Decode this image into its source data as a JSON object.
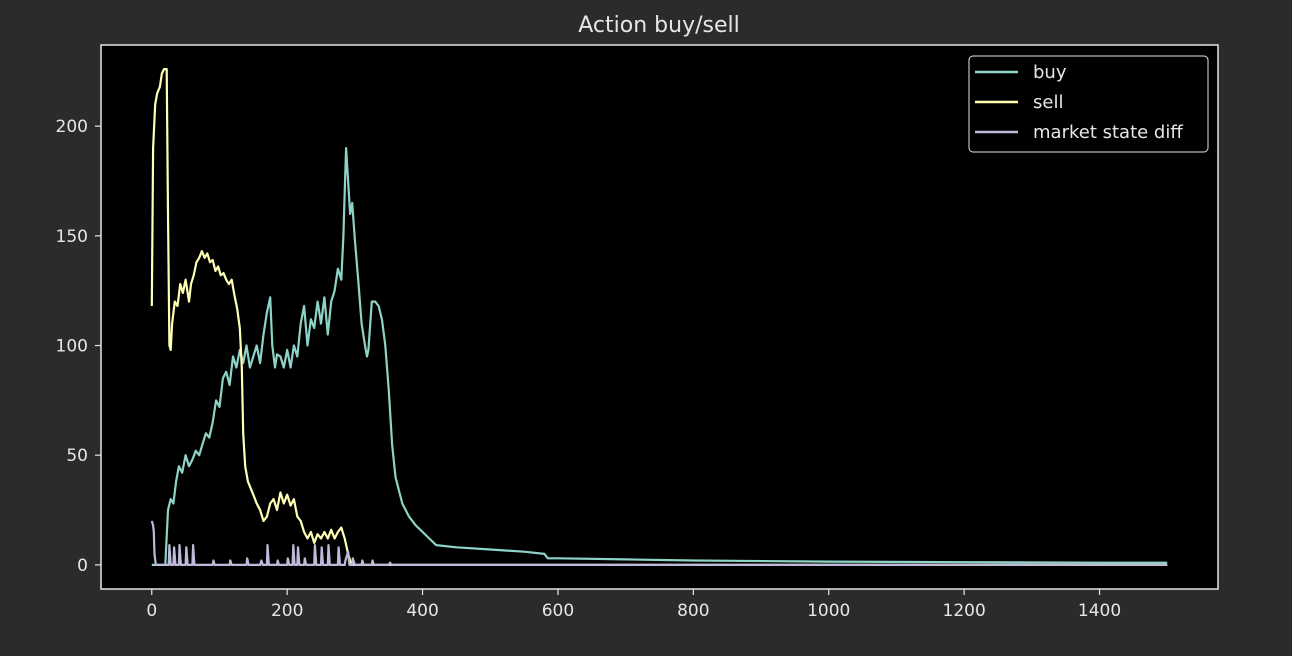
{
  "chart_data": {
    "type": "line",
    "title": "Action buy/sell",
    "xlabel": "",
    "ylabel": "",
    "xlim": [
      -75,
      1575
    ],
    "ylim": [
      -11,
      237
    ],
    "xticks": [
      0,
      200,
      400,
      600,
      800,
      1000,
      1200,
      1400
    ],
    "yticks": [
      0,
      50,
      100,
      150,
      200
    ],
    "grid": false,
    "legend_position": "top-right",
    "colors": {
      "figure_background": "#2b2b2b",
      "axes_background": "#000000",
      "axes_edge": "#e6e6e6",
      "text": "#e6e6e6"
    },
    "series": [
      {
        "name": "buy",
        "color": "#8dd3c7",
        "points": [
          [
            0,
            0
          ],
          [
            20,
            0
          ],
          [
            24,
            25
          ],
          [
            28,
            30
          ],
          [
            32,
            28
          ],
          [
            36,
            38
          ],
          [
            40,
            45
          ],
          [
            45,
            42
          ],
          [
            50,
            50
          ],
          [
            55,
            45
          ],
          [
            60,
            48
          ],
          [
            65,
            52
          ],
          [
            70,
            50
          ],
          [
            75,
            55
          ],
          [
            80,
            60
          ],
          [
            85,
            58
          ],
          [
            90,
            65
          ],
          [
            95,
            75
          ],
          [
            100,
            72
          ],
          [
            105,
            85
          ],
          [
            110,
            88
          ],
          [
            115,
            82
          ],
          [
            120,
            95
          ],
          [
            125,
            90
          ],
          [
            130,
            98
          ],
          [
            135,
            92
          ],
          [
            140,
            100
          ],
          [
            145,
            90
          ],
          [
            150,
            95
          ],
          [
            155,
            100
          ],
          [
            160,
            92
          ],
          [
            165,
            105
          ],
          [
            170,
            115
          ],
          [
            175,
            122
          ],
          [
            178,
            100
          ],
          [
            182,
            90
          ],
          [
            185,
            96
          ],
          [
            190,
            95
          ],
          [
            195,
            90
          ],
          [
            200,
            98
          ],
          [
            205,
            90
          ],
          [
            210,
            100
          ],
          [
            215,
            95
          ],
          [
            220,
            110
          ],
          [
            225,
            118
          ],
          [
            230,
            100
          ],
          [
            235,
            112
          ],
          [
            240,
            108
          ],
          [
            245,
            120
          ],
          [
            250,
            110
          ],
          [
            255,
            122
          ],
          [
            260,
            105
          ],
          [
            265,
            120
          ],
          [
            270,
            125
          ],
          [
            275,
            135
          ],
          [
            280,
            130
          ],
          [
            283,
            150
          ],
          [
            285,
            170
          ],
          [
            287,
            190
          ],
          [
            290,
            175
          ],
          [
            293,
            160
          ],
          [
            296,
            165
          ],
          [
            300,
            148
          ],
          [
            305,
            130
          ],
          [
            310,
            110
          ],
          [
            315,
            100
          ],
          [
            318,
            95
          ],
          [
            320,
            98
          ],
          [
            325,
            120
          ],
          [
            330,
            120
          ],
          [
            335,
            118
          ],
          [
            340,
            112
          ],
          [
            345,
            100
          ],
          [
            350,
            80
          ],
          [
            355,
            55
          ],
          [
            360,
            40
          ],
          [
            370,
            28
          ],
          [
            380,
            22
          ],
          [
            390,
            18
          ],
          [
            400,
            15
          ],
          [
            410,
            12
          ],
          [
            420,
            9
          ],
          [
            450,
            8
          ],
          [
            500,
            7
          ],
          [
            550,
            6
          ],
          [
            580,
            5
          ],
          [
            585,
            3
          ],
          [
            600,
            3
          ],
          [
            700,
            2.5
          ],
          [
            800,
            2
          ],
          [
            1000,
            1.5
          ],
          [
            1200,
            1.2
          ],
          [
            1400,
            1
          ],
          [
            1500,
            1
          ]
        ]
      },
      {
        "name": "sell",
        "color": "#ffffb3",
        "points": [
          [
            0,
            118
          ],
          [
            2,
            190
          ],
          [
            5,
            210
          ],
          [
            8,
            215
          ],
          [
            12,
            218
          ],
          [
            15,
            224
          ],
          [
            18,
            226
          ],
          [
            22,
            226
          ],
          [
            24,
            160
          ],
          [
            26,
            100
          ],
          [
            28,
            98
          ],
          [
            30,
            110
          ],
          [
            34,
            120
          ],
          [
            38,
            118
          ],
          [
            42,
            128
          ],
          [
            46,
            124
          ],
          [
            50,
            130
          ],
          [
            55,
            120
          ],
          [
            58,
            128
          ],
          [
            62,
            132
          ],
          [
            66,
            138
          ],
          [
            70,
            140
          ],
          [
            74,
            143
          ],
          [
            78,
            140
          ],
          [
            82,
            142
          ],
          [
            86,
            138
          ],
          [
            90,
            139
          ],
          [
            94,
            134
          ],
          [
            98,
            136
          ],
          [
            102,
            132
          ],
          [
            106,
            133
          ],
          [
            110,
            130
          ],
          [
            114,
            128
          ],
          [
            118,
            130
          ],
          [
            122,
            123
          ],
          [
            126,
            117
          ],
          [
            130,
            108
          ],
          [
            133,
            90
          ],
          [
            135,
            60
          ],
          [
            138,
            45
          ],
          [
            142,
            38
          ],
          [
            146,
            35
          ],
          [
            150,
            32
          ],
          [
            155,
            28
          ],
          [
            160,
            25
          ],
          [
            165,
            20
          ],
          [
            170,
            22
          ],
          [
            175,
            28
          ],
          [
            180,
            30
          ],
          [
            185,
            25
          ],
          [
            190,
            33
          ],
          [
            195,
            28
          ],
          [
            200,
            32
          ],
          [
            205,
            27
          ],
          [
            210,
            30
          ],
          [
            215,
            22
          ],
          [
            220,
            20
          ],
          [
            225,
            15
          ],
          [
            230,
            12
          ],
          [
            235,
            15
          ],
          [
            240,
            10
          ],
          [
            245,
            14
          ],
          [
            250,
            12
          ],
          [
            255,
            15
          ],
          [
            260,
            12
          ],
          [
            265,
            16
          ],
          [
            270,
            12
          ],
          [
            275,
            15
          ],
          [
            280,
            17
          ],
          [
            285,
            12
          ],
          [
            290,
            5
          ],
          [
            295,
            0
          ],
          [
            300,
            0
          ],
          [
            400,
            0
          ],
          [
            600,
            0
          ],
          [
            1000,
            0
          ],
          [
            1500,
            0
          ]
        ]
      },
      {
        "name": "market state diff",
        "color": "#bebada",
        "points": [
          [
            0,
            20
          ],
          [
            2,
            18
          ],
          [
            3,
            15
          ],
          [
            4,
            5
          ],
          [
            6,
            0
          ],
          [
            25,
            0
          ],
          [
            26,
            9
          ],
          [
            28,
            0
          ],
          [
            32,
            0
          ],
          [
            33,
            8
          ],
          [
            35,
            0
          ],
          [
            40,
            0
          ],
          [
            41,
            9
          ],
          [
            43,
            0
          ],
          [
            50,
            0
          ],
          [
            51,
            8
          ],
          [
            53,
            0
          ],
          [
            60,
            0
          ],
          [
            61,
            9
          ],
          [
            63,
            0
          ],
          [
            90,
            0
          ],
          [
            91,
            2
          ],
          [
            93,
            0
          ],
          [
            115,
            0
          ],
          [
            116,
            2
          ],
          [
            118,
            0
          ],
          [
            140,
            0
          ],
          [
            141,
            3
          ],
          [
            143,
            0
          ],
          [
            160,
            0
          ],
          [
            162,
            2
          ],
          [
            164,
            0
          ],
          [
            170,
            0
          ],
          [
            171,
            9
          ],
          [
            173,
            0
          ],
          [
            185,
            0
          ],
          [
            186,
            2
          ],
          [
            188,
            0
          ],
          [
            200,
            0
          ],
          [
            201,
            3
          ],
          [
            203,
            0
          ],
          [
            208,
            0
          ],
          [
            209,
            9
          ],
          [
            211,
            0
          ],
          [
            215,
            0
          ],
          [
            216,
            8
          ],
          [
            218,
            0
          ],
          [
            225,
            0
          ],
          [
            226,
            3
          ],
          [
            228,
            0
          ],
          [
            240,
            0
          ],
          [
            241,
            9
          ],
          [
            243,
            0
          ],
          [
            250,
            0
          ],
          [
            251,
            8
          ],
          [
            253,
            0
          ],
          [
            260,
            0
          ],
          [
            261,
            9
          ],
          [
            263,
            0
          ],
          [
            275,
            0
          ],
          [
            276,
            8
          ],
          [
            278,
            0
          ],
          [
            285,
            0
          ],
          [
            286,
            2
          ],
          [
            290,
            6
          ],
          [
            292,
            0
          ],
          [
            296,
            0
          ],
          [
            297,
            3
          ],
          [
            300,
            0
          ],
          [
            310,
            0
          ],
          [
            311,
            2
          ],
          [
            313,
            0
          ],
          [
            325,
            0
          ],
          [
            326,
            2
          ],
          [
            328,
            0
          ],
          [
            350,
            0
          ],
          [
            352,
            1
          ],
          [
            354,
            0
          ],
          [
            1500,
            0
          ]
        ]
      }
    ]
  }
}
